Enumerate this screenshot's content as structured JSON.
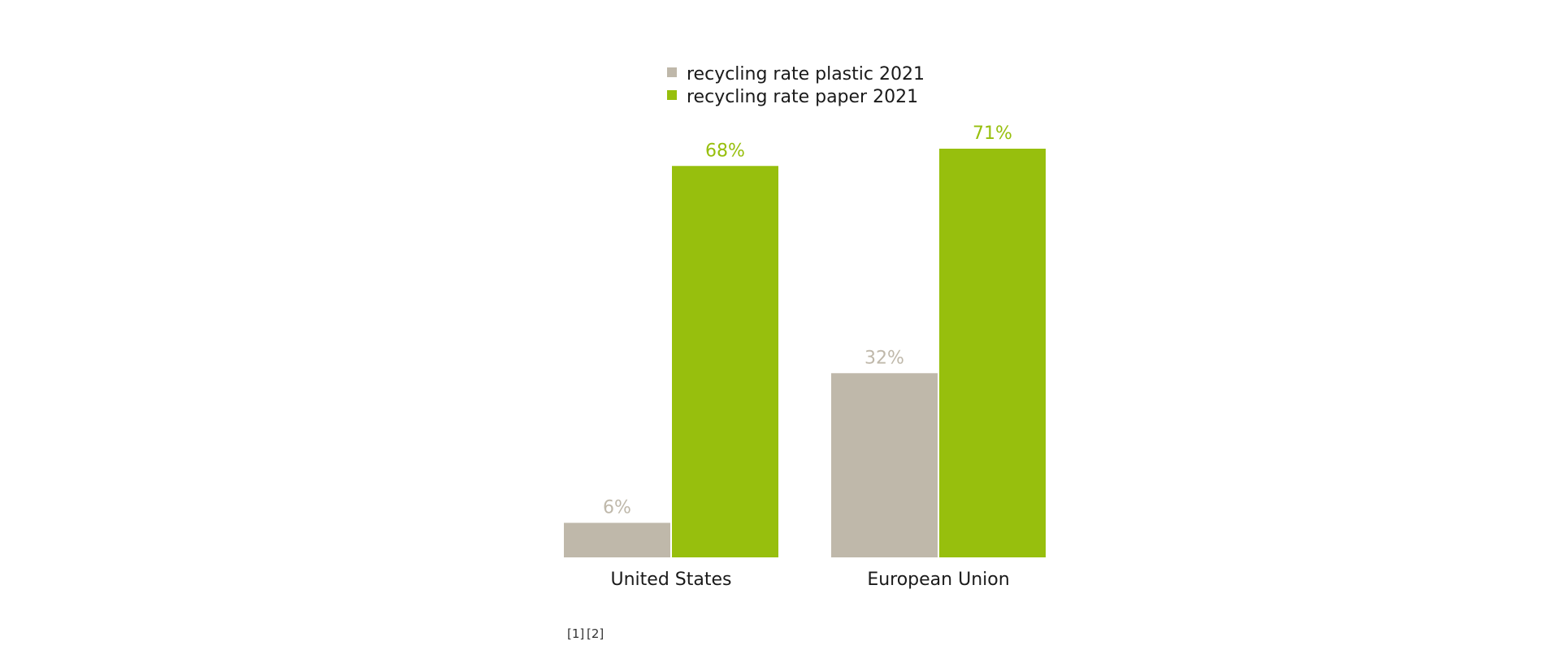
{
  "chart_data": {
    "type": "bar",
    "categories": [
      "United States",
      "European Union"
    ],
    "series": [
      {
        "name": "recycling rate plastic 2021",
        "values": [
          6,
          32
        ],
        "labels": [
          "6%",
          "32%"
        ],
        "color": "#bfb8aa"
      },
      {
        "name": "recycling rate paper 2021",
        "values": [
          68,
          71
        ],
        "labels": [
          "68%",
          "71%"
        ],
        "color": "#97bf0d"
      }
    ],
    "ylim": [
      0,
      71
    ],
    "legend_position": "top-center",
    "grid": false
  },
  "footnotes": [
    "[1]",
    "[2]"
  ]
}
